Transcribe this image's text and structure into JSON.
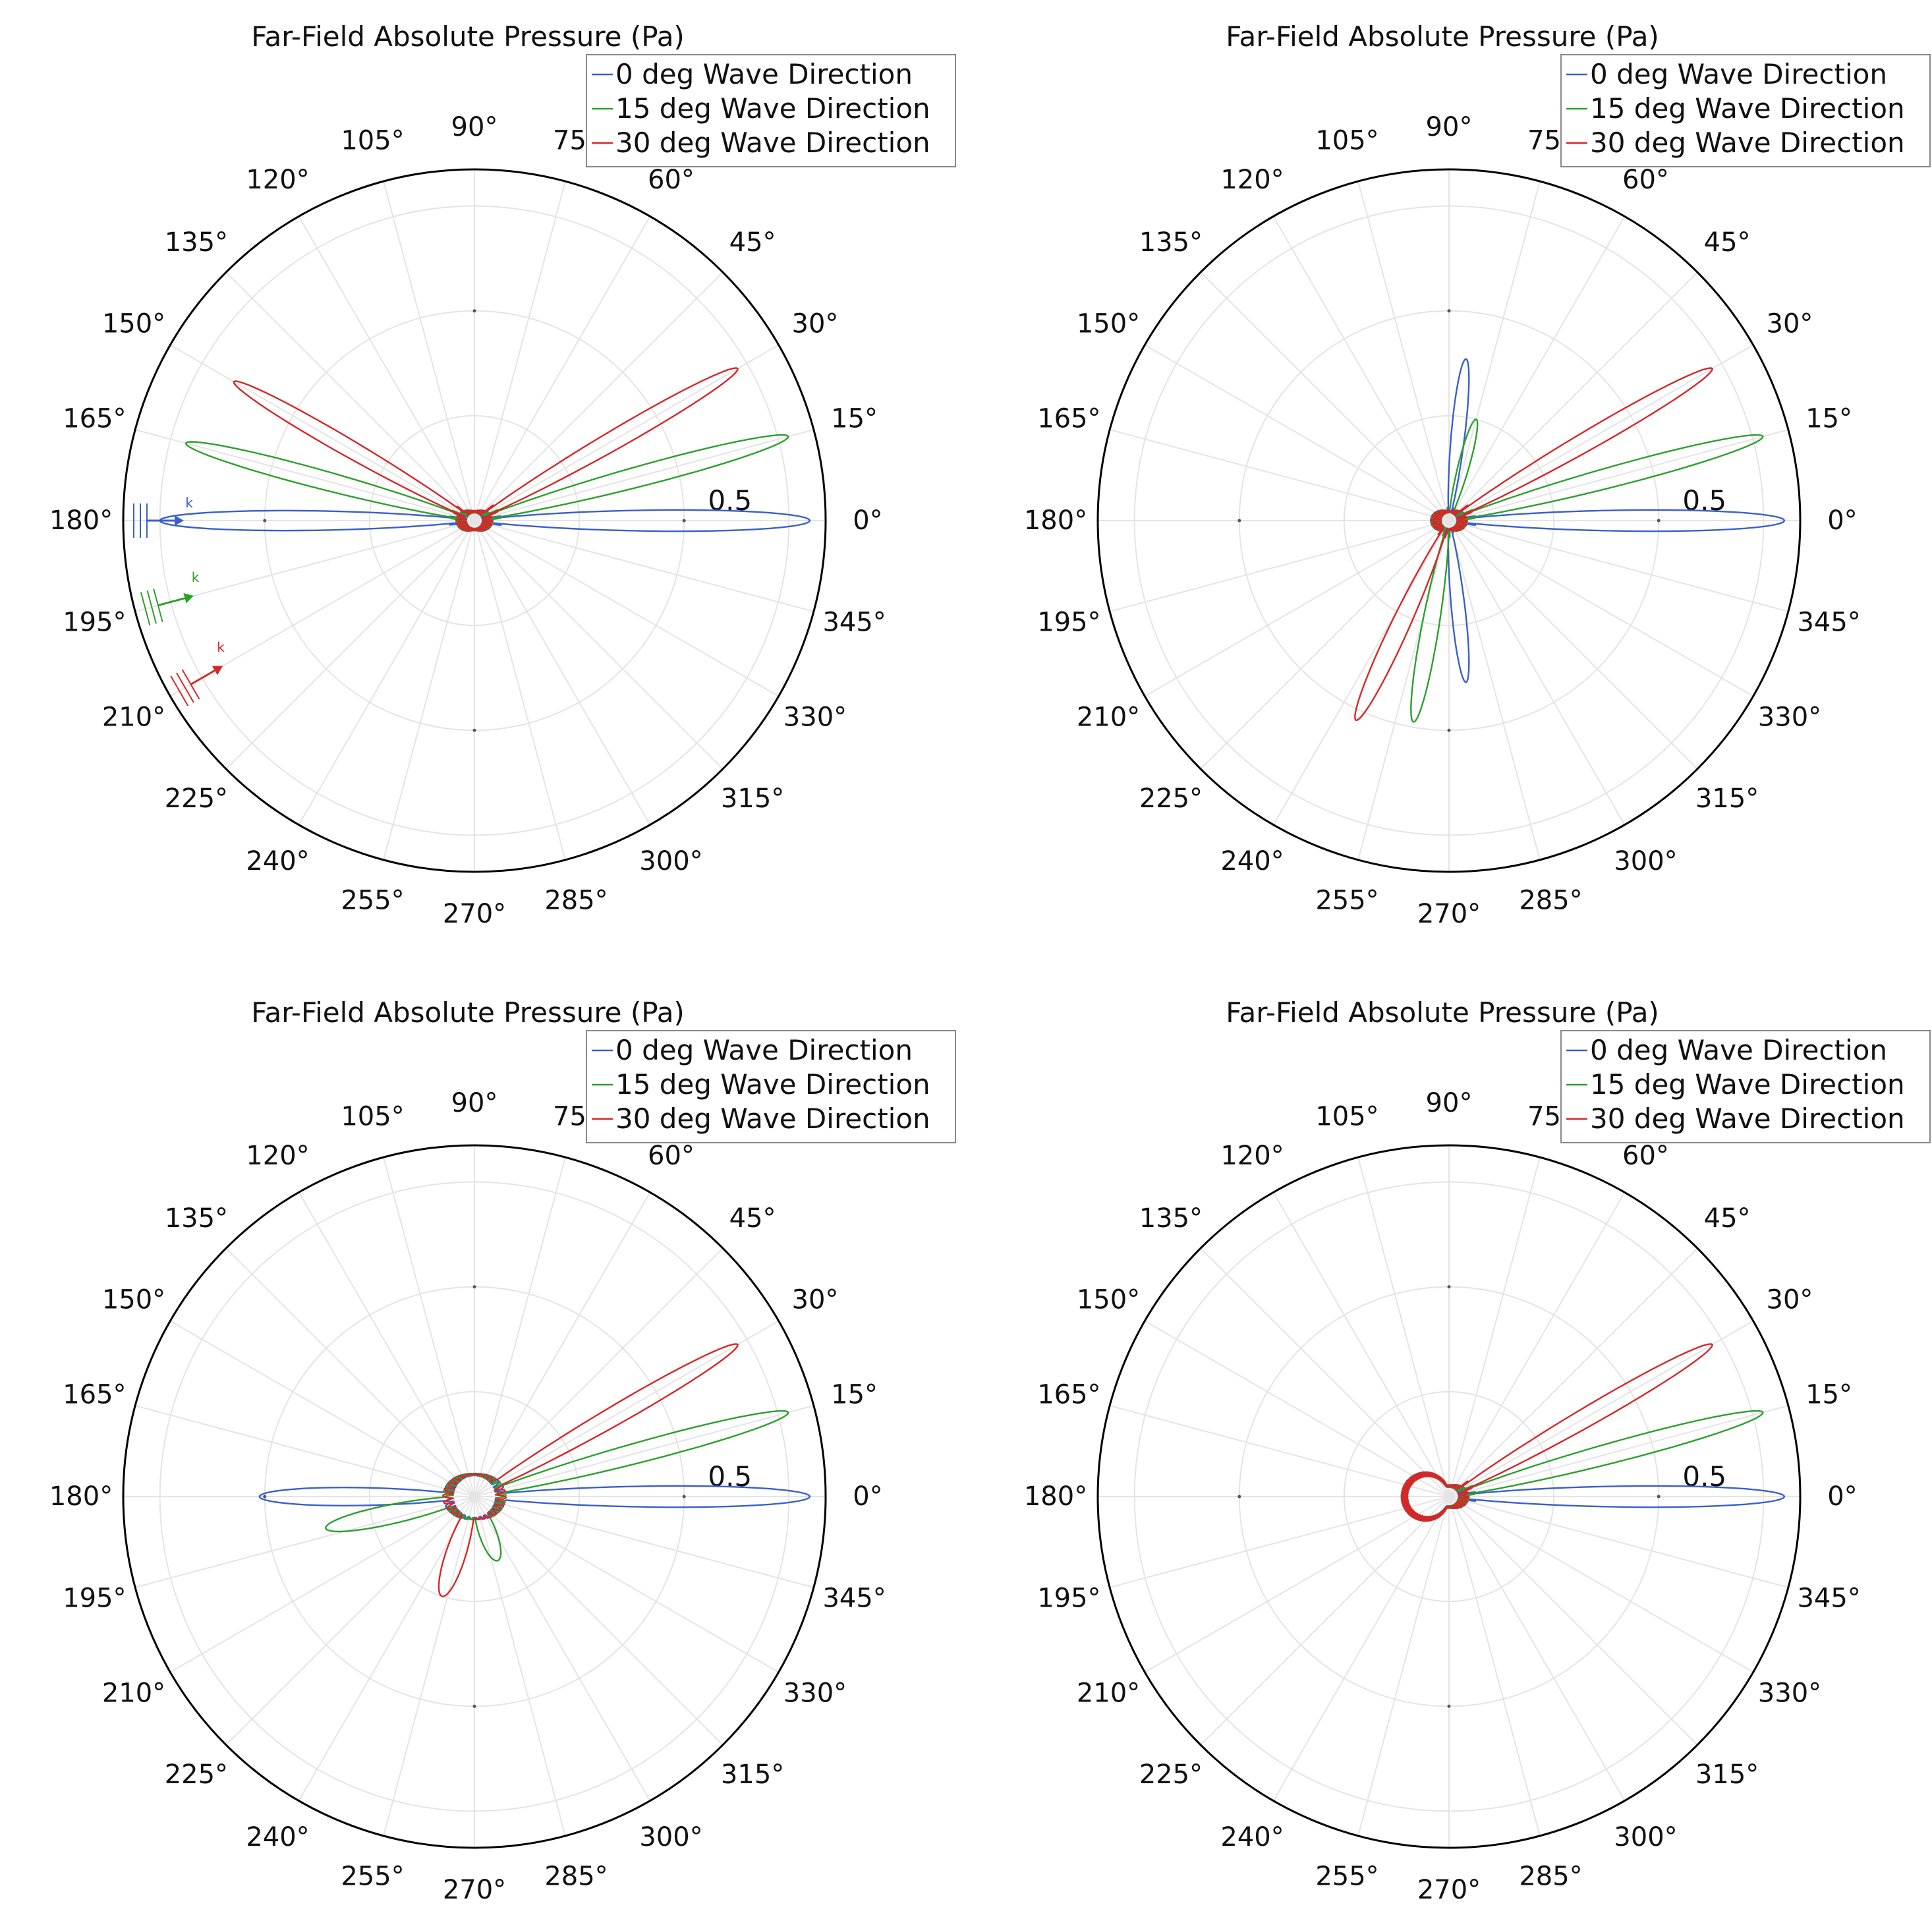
{
  "chart_data": [
    {
      "type": "polar-line",
      "title": "Far-Field Absolute Pressure (Pa)",
      "radial_tick_label": "0.5",
      "radial_range": [
        0,
        0.67
      ],
      "angle_labels": [
        "0°",
        "15°",
        "30°",
        "45°",
        "60°",
        "75°",
        "90°",
        "105°",
        "120°",
        "135°",
        "150°",
        "165°",
        "180°",
        "195°",
        "210°",
        "225°",
        "240°",
        "255°",
        "270°",
        "285°",
        "300°",
        "315°",
        "330°",
        "345°"
      ],
      "grid": true,
      "legend": "top-right",
      "legend_entries": [
        "0 deg Wave Direction",
        "15 deg Wave Direction",
        "30 deg Wave Direction"
      ],
      "wave_arrow_label": "k",
      "wave_arrows_shown": true,
      "series": [
        {
          "name": "0 deg Wave Direction",
          "color": "#3a5fcd",
          "lobes": [
            {
              "angle": 0,
              "r": 0.64,
              "width": 3
            },
            {
              "angle": 180,
              "r": 0.6,
              "width": 3
            }
          ],
          "base_r": 0.015
        },
        {
          "name": "15 deg Wave Direction",
          "color": "#2ca02c",
          "lobes": [
            {
              "angle": 15,
              "r": 0.62,
              "width": 3
            },
            {
              "angle": 165,
              "r": 0.57,
              "width": 3
            }
          ],
          "base_r": 0.015
        },
        {
          "name": "30 deg Wave Direction",
          "color": "#d62728",
          "lobes": [
            {
              "angle": 30,
              "r": 0.58,
              "width": 3
            },
            {
              "angle": 150,
              "r": 0.53,
              "width": 3
            }
          ],
          "base_r": 0.015
        }
      ]
    },
    {
      "type": "polar-line",
      "title": "Far-Field Absolute Pressure (Pa)",
      "radial_tick_label": "0.5",
      "radial_range": [
        0,
        0.67
      ],
      "angle_labels": [
        "0°",
        "15°",
        "30°",
        "45°",
        "60°",
        "75°",
        "90°",
        "105°",
        "120°",
        "135°",
        "150°",
        "165°",
        "180°",
        "195°",
        "210°",
        "225°",
        "240°",
        "255°",
        "270°",
        "285°",
        "300°",
        "315°",
        "330°",
        "345°"
      ],
      "grid": true,
      "legend": "top-right",
      "legend_entries": [
        "0 deg Wave Direction",
        "15 deg Wave Direction",
        "30 deg Wave Direction"
      ],
      "wave_arrows_shown": false,
      "series": [
        {
          "name": "0 deg Wave Direction",
          "color": "#3a5fcd",
          "lobes": [
            {
              "angle": 0,
              "r": 0.64,
              "width": 3
            },
            {
              "angle": 84,
              "r": 0.31,
              "width": 4
            },
            {
              "angle": 276,
              "r": 0.31,
              "width": 4
            }
          ],
          "base_r": 0.015
        },
        {
          "name": "15 deg Wave Direction",
          "color": "#2ca02c",
          "lobes": [
            {
              "angle": 15,
              "r": 0.62,
              "width": 3
            },
            {
              "angle": 75,
              "r": 0.2,
              "width": 5
            },
            {
              "angle": 260,
              "r": 0.39,
              "width": 4
            }
          ],
          "base_r": 0.015
        },
        {
          "name": "30 deg Wave Direction",
          "color": "#d62728",
          "lobes": [
            {
              "angle": 30,
              "r": 0.58,
              "width": 3
            },
            {
              "angle": 245,
              "r": 0.42,
              "width": 4
            }
          ],
          "base_r": 0.015
        }
      ]
    },
    {
      "type": "polar-line",
      "title": "Far-Field Absolute Pressure (Pa)",
      "radial_tick_label": "0.5",
      "radial_range": [
        0,
        0.67
      ],
      "angle_labels": [
        "0°",
        "15°",
        "30°",
        "45°",
        "60°",
        "75°",
        "90°",
        "105°",
        "120°",
        "135°",
        "150°",
        "165°",
        "180°",
        "195°",
        "210°",
        "225°",
        "240°",
        "255°",
        "270°",
        "285°",
        "300°",
        "315°",
        "330°",
        "345°"
      ],
      "grid": true,
      "legend": "top-right",
      "legend_entries": [
        "0 deg Wave Direction",
        "15 deg Wave Direction",
        "30 deg Wave Direction"
      ],
      "wave_arrows_shown": false,
      "series": [
        {
          "name": "0 deg Wave Direction",
          "color": "#3a5fcd",
          "lobes": [
            {
              "angle": 0,
              "r": 0.64,
              "width": 3
            },
            {
              "angle": 180,
              "r": 0.41,
              "width": 4
            }
          ],
          "base_r": 0.04
        },
        {
          "name": "15 deg Wave Direction",
          "color": "#2ca02c",
          "lobes": [
            {
              "angle": 15,
              "r": 0.62,
              "width": 3
            },
            {
              "angle": 192,
              "r": 0.29,
              "width": 6
            },
            {
              "angle": 290,
              "r": 0.13,
              "width": 12
            }
          ],
          "base_r": 0.04
        },
        {
          "name": "30 deg Wave Direction",
          "color": "#d62728",
          "lobes": [
            {
              "angle": 30,
              "r": 0.58,
              "width": 3
            },
            {
              "angle": 252,
              "r": 0.2,
              "width": 9
            }
          ],
          "base_r": 0.04
        }
      ]
    },
    {
      "type": "polar-line",
      "title": "Far-Field Absolute Pressure (Pa)",
      "radial_tick_label": "0.5",
      "radial_range": [
        0,
        0.67
      ],
      "angle_labels": [
        "0°",
        "15°",
        "30°",
        "45°",
        "60°",
        "75°",
        "90°",
        "105°",
        "120°",
        "135°",
        "150°",
        "165°",
        "180°",
        "195°",
        "210°",
        "225°",
        "240°",
        "255°",
        "270°",
        "285°",
        "300°",
        "315°",
        "330°",
        "345°"
      ],
      "grid": true,
      "legend": "top-right",
      "legend_entries": [
        "0 deg Wave Direction",
        "15 deg Wave Direction",
        "30 deg Wave Direction"
      ],
      "wave_arrows_shown": false,
      "series": [
        {
          "name": "0 deg Wave Direction",
          "color": "#3a5fcd",
          "lobes": [
            {
              "angle": 0,
              "r": 0.64,
              "width": 3
            }
          ],
          "base_r": 0.018,
          "circle_r": 0.085
        },
        {
          "name": "15 deg Wave Direction",
          "color": "#2ca02c",
          "lobes": [
            {
              "angle": 15,
              "r": 0.62,
              "width": 3
            }
          ],
          "base_r": 0.018,
          "circle_r": 0.085
        },
        {
          "name": "30 deg Wave Direction",
          "color": "#d62728",
          "lobes": [
            {
              "angle": 30,
              "r": 0.58,
              "width": 3
            }
          ],
          "base_r": 0.018,
          "circle_r": 0.085
        }
      ]
    }
  ]
}
